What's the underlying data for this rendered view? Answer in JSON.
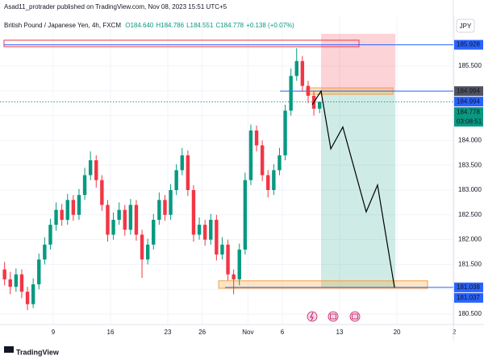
{
  "chart_data": {
    "type": "candlestick",
    "header": "Asad11_protrader published on TradingView.com, Nov 08, 2023 15:51 UTC+5",
    "title": "British Pound / Japanese Yen, 4h, FXCM",
    "legend_values": [
      "O184.640",
      "H184.786",
      "L184.551",
      "C184.778",
      "+0.138 (+0.07%)"
    ],
    "currency": "JPY",
    "footer": "TradingView",
    "up_color": "#089981",
    "down_color": "#f23645",
    "x": [
      -4.25,
      -3.75,
      -3.25,
      -2.75,
      -2.25,
      -1.75,
      -1.25,
      -0.75,
      -0.25,
      0.25,
      0.75,
      1.25,
      1.75,
      2.25,
      2.75,
      3.25,
      3.75,
      4.25,
      4.75,
      5.25,
      5.75,
      6.25,
      6.75,
      7.25,
      7.75,
      8.25,
      8.75,
      9.25,
      9.75,
      10.25,
      10.75,
      11.25,
      11.75,
      12.25,
      12.75,
      13.25,
      13.75,
      14.25,
      14.75,
      15.25,
      15.75,
      16.25,
      16.75,
      17.25,
      17.75,
      18.25,
      18.75,
      19.25,
      19.75,
      20.25,
      20.75,
      21.25,
      21.75,
      22.25,
      22.75,
      23.25
    ],
    "open": [
      181.4,
      181.2,
      181.05,
      181.3,
      180.95,
      180.7,
      181.1,
      181.6,
      181.9,
      182.3,
      182.6,
      182.4,
      182.8,
      182.5,
      182.9,
      183.3,
      183.6,
      183.2,
      182.7,
      182.1,
      182.4,
      182.6,
      182.2,
      182.7,
      182.1,
      181.6,
      181.9,
      182.4,
      182.8,
      182.5,
      183.0,
      183.4,
      183.7,
      183.0,
      182.1,
      182.3,
      182.0,
      182.4,
      181.7,
      181.9,
      181.3,
      181.2,
      181.8,
      183.2,
      184.2,
      183.9,
      183.3,
      183.0,
      183.4,
      183.7,
      184.6,
      185.3,
      185.6,
      185.1,
      184.9,
      184.64
    ],
    "high": [
      181.55,
      181.35,
      181.42,
      181.4,
      181.05,
      181.22,
      181.72,
      182.05,
      182.42,
      182.75,
      182.72,
      182.92,
      182.9,
      183.02,
      183.45,
      183.78,
      183.7,
      183.3,
      182.8,
      182.55,
      182.75,
      182.7,
      182.82,
      182.8,
      182.2,
      182.02,
      182.52,
      182.95,
      182.9,
      183.12,
      183.52,
      183.85,
      183.8,
      183.1,
      182.45,
      182.4,
      182.52,
      182.5,
      182.05,
      182.0,
      181.4,
      181.92,
      183.35,
      184.32,
      184.3,
      184.0,
      183.4,
      183.52,
      183.85,
      184.72,
      185.45,
      185.86,
      185.7,
      185.2,
      185.0,
      184.786
    ],
    "low": [
      181.08,
      180.9,
      180.95,
      180.82,
      180.58,
      180.62,
      181.0,
      181.5,
      181.8,
      182.18,
      182.28,
      182.3,
      182.38,
      182.4,
      182.8,
      183.2,
      183.05,
      182.58,
      181.96,
      182.0,
      182.3,
      182.08,
      182.1,
      181.98,
      181.23,
      181.5,
      181.8,
      182.3,
      182.38,
      182.4,
      182.9,
      183.3,
      182.88,
      181.96,
      182.0,
      181.88,
      181.9,
      181.58,
      181.6,
      181.18,
      180.9,
      181.08,
      181.7,
      183.1,
      183.78,
      183.18,
      182.85,
      182.9,
      183.3,
      183.6,
      184.5,
      185.2,
      184.98,
      184.75,
      184.5,
      184.551
    ],
    "close": [
      181.2,
      181.05,
      181.3,
      180.95,
      180.7,
      181.1,
      181.6,
      181.9,
      182.3,
      182.6,
      182.4,
      182.8,
      182.5,
      182.9,
      183.3,
      183.6,
      183.2,
      182.7,
      182.1,
      182.4,
      182.6,
      182.2,
      182.7,
      182.1,
      181.6,
      181.9,
      182.4,
      182.8,
      182.5,
      183.0,
      183.4,
      183.7,
      183.0,
      182.1,
      182.3,
      182.0,
      182.4,
      181.7,
      181.9,
      181.3,
      181.2,
      181.8,
      183.2,
      184.2,
      183.9,
      183.3,
      183.0,
      183.4,
      183.7,
      184.6,
      185.3,
      185.6,
      185.1,
      184.9,
      184.64,
      184.778
    ],
    "xlim": [
      -4.648,
      35.21
    ],
    "xticks": [
      {
        "value": 0,
        "label": "9"
      },
      {
        "value": 5,
        "label": "16"
      },
      {
        "value": 10,
        "label": "23"
      },
      {
        "value": 13,
        "label": "26"
      },
      {
        "value": 17,
        "label": "Nov"
      },
      {
        "value": 20,
        "label": "6"
      },
      {
        "value": 25,
        "label": "13"
      },
      {
        "value": 30,
        "label": "20"
      },
      {
        "value": 35,
        "label": "2"
      }
    ],
    "ylim": [
      180.289,
      186.506
    ],
    "yticks": [
      {
        "value": 180.5,
        "label": "180.500"
      },
      {
        "value": 181,
        "label": "181.000"
      },
      {
        "value": 181.5,
        "label": "181.500"
      },
      {
        "value": 182,
        "label": "182.000"
      },
      {
        "value": 182.5,
        "label": "182.500"
      },
      {
        "value": 183,
        "label": "183.000"
      },
      {
        "value": 183.5,
        "label": "183.500"
      },
      {
        "value": 184,
        "label": "184.000"
      },
      {
        "value": 184.5,
        "label": "184.500"
      },
      {
        "value": 185,
        "label": "185.000"
      },
      {
        "value": 185.5,
        "label": "185.500"
      }
    ],
    "grid": true,
    "zones": [
      {
        "x0": 23.38,
        "x1": 29.86,
        "y0": 184.994,
        "y1": 186.15,
        "fill": "rgba(242,54,69,0.22)",
        "stroke": "none"
      },
      {
        "x0": 23.38,
        "x1": 29.86,
        "y0": 181.038,
        "y1": 184.994,
        "fill": "rgba(8,153,129,0.2)",
        "stroke": "none"
      },
      {
        "x0": 22.11,
        "x1": 29.65,
        "y0": 184.93,
        "y1": 185.06,
        "fill": "rgba(255,152,0,0.25)",
        "stroke": "#f0a050"
      },
      {
        "x0": 14.44,
        "x1": 32.68,
        "y0": 181.02,
        "y1": 181.17,
        "fill": "rgba(255,152,0,0.25)",
        "stroke": "#f0a050"
      },
      {
        "x0": -4.3,
        "x1": 26.69,
        "y0": 185.89,
        "y1": 186.02,
        "fill": "none",
        "stroke": "#f23645"
      }
    ],
    "levels": [
      {
        "value": 185.928,
        "from": -4.3,
        "color": "#2962ff",
        "dashed": false
      },
      {
        "value": 184.994,
        "from": 19.8,
        "color": "#2962ff",
        "dashed": false
      },
      {
        "value": 181.038,
        "from": 15.0,
        "color": "#2962ff",
        "dashed": false
      },
      {
        "value": 184.778,
        "from": -4.648,
        "color": "#089981",
        "dashed": true
      }
    ],
    "projection": {
      "x": [
        22.61,
        23.38,
        24.23,
        25.28,
        27.32,
        28.31,
        29.79
      ],
      "y": [
        184.72,
        184.994,
        183.83,
        184.27,
        182.56,
        183.1,
        181.038
      ],
      "color": "#000000"
    },
    "price_labels": [
      {
        "value": 185.928,
        "label": "185.928",
        "color": "#2962ff"
      },
      {
        "value": 184.994,
        "label": "184.994",
        "color": "#50535e"
      },
      {
        "value": 184.994,
        "label": "184.994",
        "color": "#2962ff"
      },
      {
        "value": 184.778,
        "label": "184.778",
        "color": "#089981",
        "countdown": "03:08:51"
      },
      {
        "value": 181.038,
        "label": "181.038",
        "color": "#2962ff"
      },
      {
        "value": 181.037,
        "label": "181.037",
        "color": "#2962ff"
      }
    ]
  }
}
